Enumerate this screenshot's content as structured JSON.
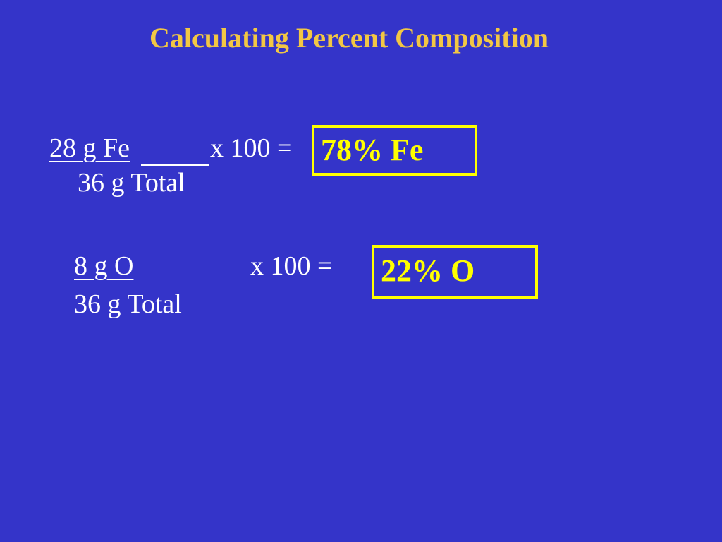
{
  "title": "Calculating Percent Composition",
  "calculations": [
    {
      "numerator": "28 g Fe",
      "denominator": "36 g Total",
      "operation": "x 100 =",
      "result": "78% Fe"
    },
    {
      "numerator": "8 g O",
      "denominator": "36 g Total",
      "operation": "x 100 =",
      "result": "22% O"
    }
  ]
}
